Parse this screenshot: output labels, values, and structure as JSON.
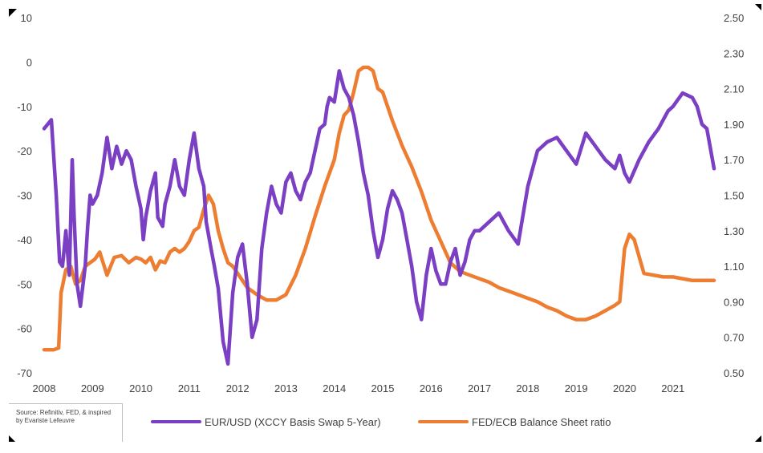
{
  "chart_data": {
    "type": "line",
    "title": "",
    "xlabel": "",
    "ylabel_left": "",
    "ylabel_right": "",
    "x_ticks": [
      "2008",
      "2009",
      "2010",
      "2011",
      "2012",
      "2013",
      "2014",
      "2015",
      "2016",
      "2017",
      "2018",
      "2019",
      "2020",
      "2021"
    ],
    "xlim": [
      2008.0,
      2021.85
    ],
    "ylim_left": [
      -70,
      10
    ],
    "ylim_right": [
      0.5,
      2.5
    ],
    "y_ticks_left": [
      "10",
      "0",
      "-10",
      "-20",
      "-30",
      "-40",
      "-50",
      "-60",
      "-70"
    ],
    "y_ticks_right": [
      "2.50",
      "2.30",
      "2.10",
      "1.90",
      "1.70",
      "1.50",
      "1.30",
      "1.10",
      "0.90",
      "0.70",
      "0.50"
    ],
    "grid": false,
    "legend_position": "bottom",
    "series": [
      {
        "name": "EUR/USD (XCCY Basis Swap 5-Year)",
        "axis": "left",
        "color": "#7b3fc4",
        "x": [
          2008.0,
          2008.15,
          2008.25,
          2008.32,
          2008.38,
          2008.45,
          2008.52,
          2008.58,
          2008.62,
          2008.68,
          2008.75,
          2008.85,
          2008.9,
          2008.95,
          2009.0,
          2009.1,
          2009.2,
          2009.3,
          2009.4,
          2009.5,
          2009.6,
          2009.7,
          2009.8,
          2009.9,
          2010.0,
          2010.05,
          2010.1,
          2010.2,
          2010.3,
          2010.35,
          2010.45,
          2010.5,
          2010.6,
          2010.7,
          2010.8,
          2010.9,
          2011.0,
          2011.1,
          2011.2,
          2011.3,
          2011.35,
          2011.45,
          2011.52,
          2011.6,
          2011.7,
          2011.8,
          2011.9,
          2012.0,
          2012.1,
          2012.2,
          2012.3,
          2012.4,
          2012.5,
          2012.6,
          2012.7,
          2012.8,
          2012.9,
          2013.0,
          2013.1,
          2013.2,
          2013.3,
          2013.4,
          2013.5,
          2013.6,
          2013.7,
          2013.8,
          2013.85,
          2013.9,
          2014.0,
          2014.1,
          2014.2,
          2014.3,
          2014.4,
          2014.5,
          2014.6,
          2014.7,
          2014.8,
          2014.9,
          2015.0,
          2015.1,
          2015.2,
          2015.3,
          2015.4,
          2015.5,
          2015.6,
          2015.7,
          2015.8,
          2015.9,
          2016.0,
          2016.1,
          2016.2,
          2016.3,
          2016.4,
          2016.5,
          2016.6,
          2016.7,
          2016.8,
          2016.9,
          2017.0,
          2017.2,
          2017.4,
          2017.6,
          2017.8,
          2018.0,
          2018.2,
          2018.4,
          2018.6,
          2018.8,
          2019.0,
          2019.2,
          2019.4,
          2019.6,
          2019.8,
          2019.9,
          2020.0,
          2020.1,
          2020.3,
          2020.5,
          2020.7,
          2020.9,
          2021.0,
          2021.2,
          2021.4,
          2021.5,
          2021.6,
          2021.7,
          2021.8,
          2021.85
        ],
        "y": [
          -15,
          -13,
          -30,
          -45,
          -46,
          -38,
          -48,
          -22,
          -35,
          -50,
          -55,
          -46,
          -37,
          -30,
          -32,
          -30,
          -25,
          -17,
          -24,
          -19,
          -23,
          -20,
          -22,
          -28,
          -33,
          -40,
          -35,
          -29,
          -25,
          -35,
          -37,
          -32,
          -28,
          -22,
          -28,
          -30,
          -22,
          -16,
          -24,
          -28,
          -36,
          -42,
          -46,
          -51,
          -63,
          -68,
          -52,
          -44,
          -41,
          -50,
          -62,
          -58,
          -42,
          -34,
          -28,
          -32,
          -34,
          -27,
          -25,
          -29,
          -31,
          -27,
          -25,
          -20,
          -15,
          -14,
          -10,
          -8,
          -9,
          -2,
          -6,
          -8,
          -12,
          -18,
          -25,
          -30,
          -38,
          -44,
          -40,
          -33,
          -29,
          -31,
          -34,
          -40,
          -46,
          -54,
          -58,
          -48,
          -42,
          -47,
          -50,
          -50,
          -45,
          -42,
          -48,
          -45,
          -40,
          -38,
          -38,
          -36,
          -34,
          -38,
          -41,
          -28,
          -20,
          -18,
          -17,
          -20,
          -23,
          -16,
          -19,
          -22,
          -24,
          -21,
          -25,
          -27,
          -22,
          -18,
          -15,
          -11,
          -10,
          -7,
          -8,
          -10,
          -14,
          -15,
          -21,
          -24
        ]
      },
      {
        "name": "FED/ECB Balance Sheet ratio",
        "axis": "right",
        "color": "#ed7d31",
        "x": [
          2008.0,
          2008.2,
          2008.3,
          2008.35,
          2008.45,
          2008.55,
          2008.65,
          2008.75,
          2008.85,
          2008.95,
          2009.05,
          2009.15,
          2009.3,
          2009.45,
          2009.6,
          2009.75,
          2009.9,
          2010.0,
          2010.1,
          2010.2,
          2010.3,
          2010.4,
          2010.5,
          2010.6,
          2010.7,
          2010.8,
          2010.9,
          2011.0,
          2011.1,
          2011.2,
          2011.3,
          2011.4,
          2011.5,
          2011.6,
          2011.7,
          2011.8,
          2011.9,
          2012.0,
          2012.2,
          2012.4,
          2012.6,
          2012.8,
          2013.0,
          2013.2,
          2013.4,
          2013.6,
          2013.8,
          2014.0,
          2014.1,
          2014.2,
          2014.3,
          2014.4,
          2014.5,
          2014.6,
          2014.7,
          2014.8,
          2014.9,
          2015.0,
          2015.2,
          2015.4,
          2015.6,
          2015.8,
          2016.0,
          2016.2,
          2016.4,
          2016.6,
          2016.8,
          2017.0,
          2017.2,
          2017.4,
          2017.6,
          2017.8,
          2018.0,
          2018.2,
          2018.4,
          2018.6,
          2018.8,
          2019.0,
          2019.2,
          2019.4,
          2019.6,
          2019.8,
          2019.9,
          2020.0,
          2020.1,
          2020.2,
          2020.4,
          2020.6,
          2020.8,
          2021.0,
          2021.2,
          2021.4,
          2021.6,
          2021.85
        ],
        "y": [
          0.63,
          0.63,
          0.64,
          0.95,
          1.08,
          1.1,
          1.0,
          1.02,
          1.1,
          1.12,
          1.14,
          1.18,
          1.05,
          1.15,
          1.16,
          1.12,
          1.15,
          1.14,
          1.12,
          1.15,
          1.08,
          1.13,
          1.12,
          1.18,
          1.2,
          1.18,
          1.2,
          1.24,
          1.3,
          1.32,
          1.42,
          1.5,
          1.45,
          1.3,
          1.2,
          1.12,
          1.1,
          1.06,
          0.98,
          0.94,
          0.91,
          0.91,
          0.94,
          1.05,
          1.2,
          1.38,
          1.55,
          1.7,
          1.85,
          1.95,
          1.98,
          2.08,
          2.2,
          2.22,
          2.22,
          2.2,
          2.1,
          2.08,
          1.92,
          1.78,
          1.66,
          1.52,
          1.36,
          1.24,
          1.12,
          1.07,
          1.05,
          1.03,
          1.01,
          0.98,
          0.96,
          0.94,
          0.92,
          0.9,
          0.87,
          0.85,
          0.82,
          0.8,
          0.8,
          0.82,
          0.85,
          0.88,
          0.9,
          1.2,
          1.28,
          1.25,
          1.06,
          1.05,
          1.04,
          1.04,
          1.03,
          1.02,
          1.02,
          1.02
        ]
      }
    ]
  },
  "source_note": "Source: Refinitiv, FED, & inspired by Evariste Lefeuvre"
}
